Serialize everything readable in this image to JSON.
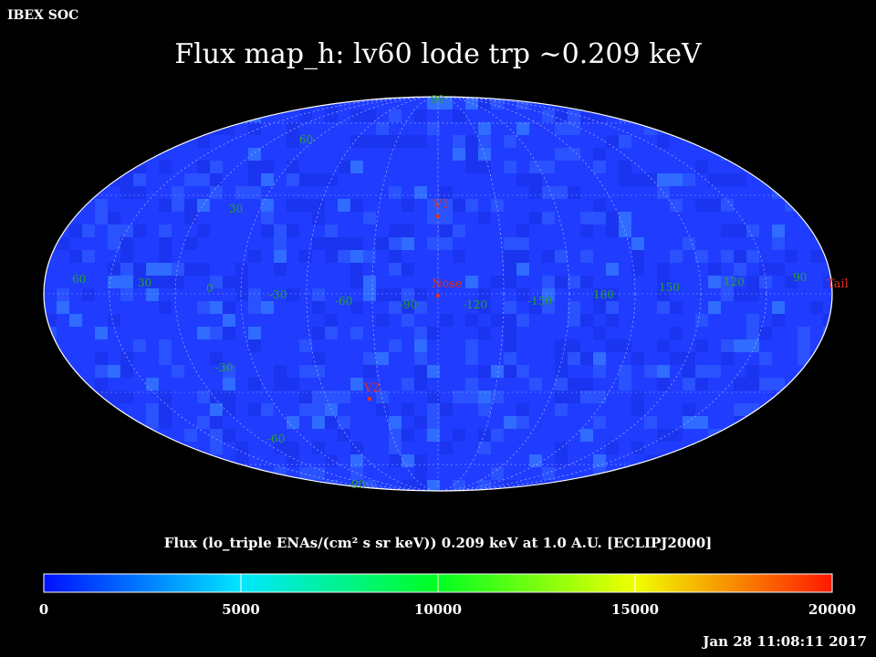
{
  "header": {
    "organization": "IBEX SOC",
    "title": "Flux   map_h: lv60 lode trp ~0.209 keV"
  },
  "map": {
    "projection": "Aitoff / Hammer all-sky",
    "base_color": "#1f3cff",
    "grid_color": "#b0b0b0",
    "boundary_color": "#ffffff",
    "lat_labels": [
      "90",
      "60",
      "30",
      "-30",
      "-60",
      "-90"
    ],
    "lon_labels": [
      "60",
      "30",
      "0",
      "-30",
      "-60",
      "-90",
      "-120",
      "-150",
      "180",
      "150",
      "120",
      "90"
    ],
    "markers": [
      {
        "label": "V1",
        "lon_deg": 0,
        "lat_deg": 35
      },
      {
        "label": "Nose",
        "lon_deg": 0,
        "lat_deg": -5
      },
      {
        "label": "V2",
        "lon_deg": 20,
        "lat_deg": -34
      },
      {
        "label": "Tail",
        "lon_deg": 180,
        "lat_deg": 0
      }
    ],
    "marker_color": "#e0301e",
    "grid_label_color": "#27a327"
  },
  "colorbar": {
    "label": "Flux (lo_triple ENAs/(cm² s sr keV))  0.209 keV at 1.0 A.U. [ECLIPJ2000]",
    "ticks": [
      "0",
      "5000",
      "10000",
      "15000",
      "20000"
    ],
    "tick_values": [
      0,
      5000,
      10000,
      15000,
      20000
    ],
    "range": [
      0,
      20000
    ],
    "colors": [
      "#0000ff",
      "#00ffff",
      "#00ff00",
      "#ffff00",
      "#ff2000"
    ]
  },
  "footer": {
    "timestamp": "Jan 28 11:08:11 2017"
  }
}
